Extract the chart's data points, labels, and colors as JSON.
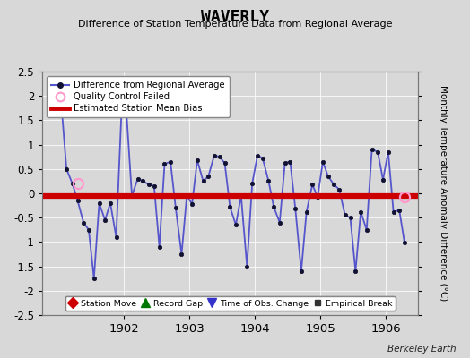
{
  "title": "WAVERLY",
  "subtitle": "Difference of Station Temperature Data from Regional Average",
  "ylabel": "Monthly Temperature Anomaly Difference (°C)",
  "background_color": "#d8d8d8",
  "plot_bg_color": "#d8d8d8",
  "line_color": "#5555cc",
  "bias_color": "#cc0000",
  "bias_value": -0.05,
  "ylim": [
    -2.5,
    2.5
  ],
  "yticks": [
    -2.5,
    -2.0,
    -1.5,
    -1.0,
    -0.5,
    0.0,
    0.5,
    1.0,
    1.5,
    2.0,
    2.5
  ],
  "xlim": [
    1900.75,
    1906.5
  ],
  "xticks": [
    1902,
    1903,
    1904,
    1905,
    1906
  ],
  "footnote": "Berkeley Earth",
  "times": [
    1901.04,
    1901.12,
    1901.21,
    1901.29,
    1901.38,
    1901.46,
    1901.54,
    1901.62,
    1901.71,
    1901.79,
    1901.88,
    1901.96,
    1902.04,
    1902.12,
    1902.21,
    1902.29,
    1902.38,
    1902.46,
    1902.54,
    1902.62,
    1902.71,
    1902.79,
    1902.88,
    1902.96,
    1903.04,
    1903.12,
    1903.21,
    1903.29,
    1903.38,
    1903.46,
    1903.54,
    1903.62,
    1903.71,
    1903.79,
    1903.88,
    1903.96,
    1904.04,
    1904.12,
    1904.21,
    1904.29,
    1904.38,
    1904.46,
    1904.54,
    1904.62,
    1904.71,
    1904.79,
    1904.88,
    1904.96,
    1905.04,
    1905.12,
    1905.21,
    1905.29,
    1905.38,
    1905.46,
    1905.54,
    1905.62,
    1905.71,
    1905.79,
    1905.88,
    1905.96,
    1906.04,
    1906.12,
    1906.21,
    1906.29
  ],
  "values": [
    1.85,
    0.5,
    0.2,
    -0.15,
    -0.6,
    -0.75,
    -1.75,
    -0.2,
    -0.55,
    -0.2,
    -0.9,
    1.65,
    1.6,
    -0.05,
    0.3,
    0.25,
    0.18,
    0.15,
    -1.1,
    0.6,
    0.65,
    -0.3,
    -1.25,
    -0.05,
    -0.22,
    0.68,
    0.25,
    0.35,
    0.78,
    0.75,
    0.62,
    -0.28,
    -0.65,
    -0.05,
    -1.5,
    0.2,
    0.78,
    0.72,
    0.25,
    -0.28,
    -0.6,
    0.62,
    0.65,
    -0.32,
    -1.6,
    -0.38,
    0.18,
    -0.08,
    0.65,
    0.35,
    0.18,
    0.08,
    -0.45,
    -0.5,
    -1.6,
    -0.38,
    -0.75,
    0.9,
    0.85,
    0.28,
    0.85,
    -0.38,
    -0.35,
    -1.02
  ],
  "qc_failed_times": [
    1901.29,
    1906.29
  ],
  "qc_failed_values": [
    0.2,
    -0.08
  ],
  "legend2_colors": [
    "#cc0000",
    "#007700",
    "#3333cc",
    "#333333"
  ],
  "legend2_markers": [
    "D",
    "^",
    "v",
    "s"
  ],
  "legend2_labels": [
    "Station Move",
    "Record Gap",
    "Time of Obs. Change",
    "Empirical Break"
  ],
  "legend2_sizes": [
    6,
    7,
    7,
    5
  ]
}
